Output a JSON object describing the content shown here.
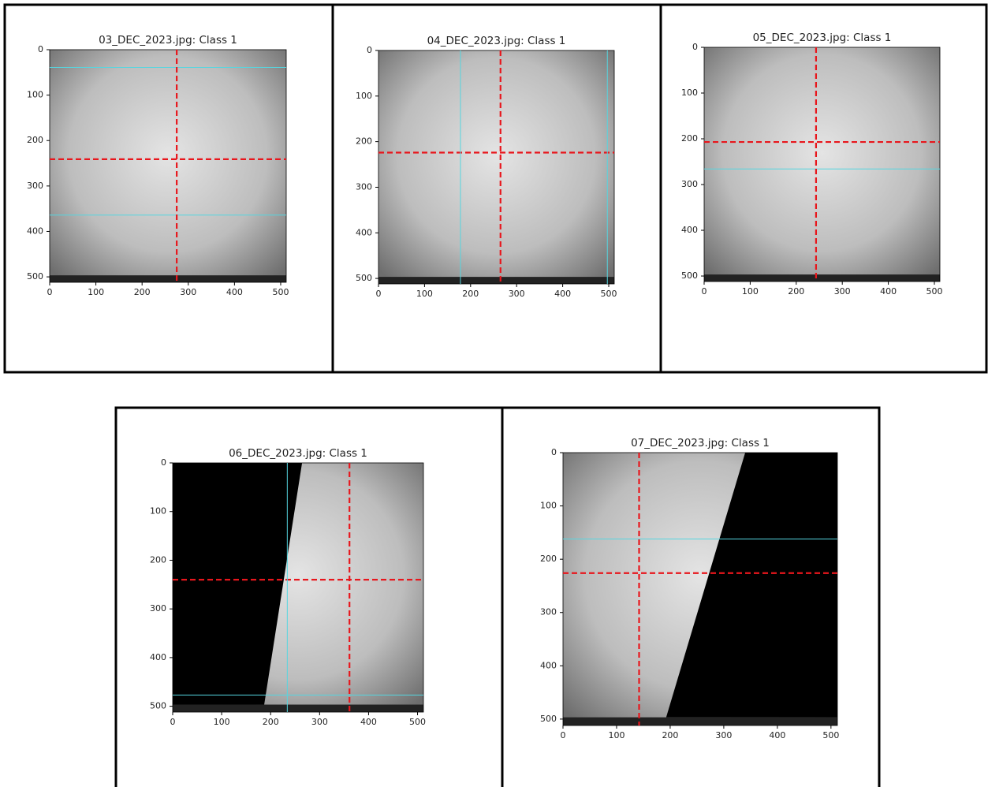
{
  "chart_data": [
    {
      "type": "image",
      "title": "03_DEC_2023.jpg: Class 1",
      "xlim": [
        0,
        512
      ],
      "ylim": [
        512,
        0
      ],
      "xticks": [
        0,
        100,
        200,
        300,
        400,
        500
      ],
      "yticks": [
        0,
        100,
        200,
        300,
        400,
        500
      ],
      "vlines": [
        {
          "value": 275,
          "color": "#e8161c",
          "dashed": true
        }
      ],
      "hlines": [
        {
          "value": 241,
          "color": "#e8161c",
          "dashed": true
        },
        {
          "value": 39,
          "color": "#55d6e0",
          "dashed": false
        },
        {
          "value": 364,
          "color": "#55d6e0",
          "dashed": false
        }
      ]
    },
    {
      "type": "image",
      "title": "04_DEC_2023.jpg: Class 1",
      "xlim": [
        0,
        512
      ],
      "ylim": [
        512,
        0
      ],
      "xticks": [
        0,
        100,
        200,
        300,
        400,
        500
      ],
      "yticks": [
        0,
        100,
        200,
        300,
        400,
        500
      ],
      "vlines": [
        {
          "value": 265,
          "color": "#e8161c",
          "dashed": true
        },
        {
          "value": 178,
          "color": "#55d6e0",
          "dashed": false
        },
        {
          "value": 497,
          "color": "#55d6e0",
          "dashed": false
        }
      ],
      "hlines": [
        {
          "value": 224,
          "color": "#e8161c",
          "dashed": true
        }
      ]
    },
    {
      "type": "image",
      "title": "05_DEC_2023.jpg: Class 1",
      "xlim": [
        0,
        512
      ],
      "ylim": [
        512,
        0
      ],
      "xticks": [
        0,
        100,
        200,
        300,
        400,
        500
      ],
      "yticks": [
        0,
        100,
        200,
        300,
        400,
        500
      ],
      "vlines": [
        {
          "value": 243,
          "color": "#e8161c",
          "dashed": true
        }
      ],
      "hlines": [
        {
          "value": 207,
          "color": "#e8161c",
          "dashed": true
        },
        {
          "value": 266,
          "color": "#55d6e0",
          "dashed": false
        }
      ]
    },
    {
      "type": "image",
      "title": "06_DEC_2023.jpg: Class 1",
      "xlim": [
        0,
        512
      ],
      "ylim": [
        512,
        0
      ],
      "xticks": [
        0,
        100,
        200,
        300,
        400,
        500
      ],
      "yticks": [
        0,
        100,
        200,
        300,
        400,
        500
      ],
      "vlines": [
        {
          "value": 361,
          "color": "#e8161c",
          "dashed": true
        },
        {
          "value": 234,
          "color": "#55d6e0",
          "dashed": false
        }
      ],
      "hlines": [
        {
          "value": 240,
          "color": "#e8161c",
          "dashed": true
        },
        {
          "value": 477,
          "color": "#55d6e0",
          "dashed": false
        }
      ]
    },
    {
      "type": "image",
      "title": "07_DEC_2023.jpg: Class 1",
      "xlim": [
        0,
        512
      ],
      "ylim": [
        512,
        0
      ],
      "xticks": [
        0,
        100,
        200,
        300,
        400,
        500
      ],
      "yticks": [
        0,
        100,
        200,
        300,
        400,
        500
      ],
      "vlines": [
        {
          "value": 142,
          "color": "#e8161c",
          "dashed": true
        }
      ],
      "hlines": [
        {
          "value": 226,
          "color": "#e8161c",
          "dashed": true
        },
        {
          "value": 162,
          "color": "#55d6e0",
          "dashed": false
        }
      ]
    }
  ]
}
